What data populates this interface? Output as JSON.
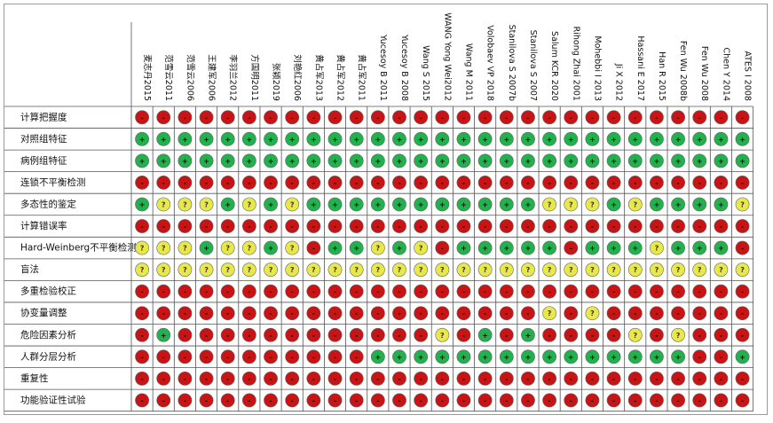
{
  "chart_data": {
    "type": "table",
    "columns": [
      "麦志丹2015",
      "范雪云2011",
      "范雪云2006",
      "王建军2006",
      "李羽兰2012",
      "方国明2011",
      "张颖2019",
      "刘艳红2006",
      "黄占军2013",
      "黄占军2012",
      "黄占军2011",
      "Yucesoy B 2011",
      "Yucesoy B 2008",
      "Wang S 2015",
      "WANG Yong Wei2012",
      "Wang M 2011",
      "Volobaev VP 2018",
      "Stanilova S 2007b",
      "Stanilova S 2007",
      "Salum KCR 2020",
      "Rihong Zhai 2001",
      "Mohebbi I 2013",
      "Ji X 2012",
      "Hassani E 2017",
      "Han R 2015",
      "Fen Wu 2008b",
      "Fen Wu 2008",
      "Chen Y 2014",
      "ATES I 2008"
    ],
    "rows": [
      "计算把握度",
      "对照组特征",
      "病例组特征",
      "连锁不平衡检测",
      "多态性的鉴定",
      "计算错误率",
      "Hard-Weinberg不平衡检测",
      "盲法",
      "多重检验校正",
      "协变量调整",
      "危险因素分析",
      "人群分层分析",
      "重复性",
      "功能验证性试验"
    ],
    "legend": {
      "+": {
        "color": "#22b14c"
      },
      "-": {
        "color": "#c81414"
      },
      "?": {
        "color": "#e8e84a"
      }
    },
    "cells": [
      "-----------------------------",
      "+++++++++++++++++++++++++++++",
      "+++++++++++++++++++++++++++++",
      "-----------------------------",
      "+???+?+?+++++++++++???+?++++?",
      "-----------------------------",
      "???+??+?-++?+?-+++++-+++?+++-",
      "?????????????????????????????",
      "-----------------------------",
      "-------------------?-?-------",
      "-+------------?-+-+----?-?---",
      "-----------+++++++++++++++--+",
      "-----------------------------",
      "-----------------------------"
    ]
  }
}
